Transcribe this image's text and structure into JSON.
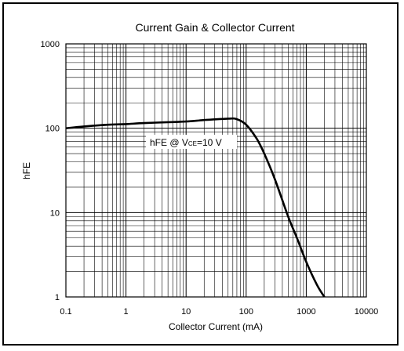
{
  "chart_data": {
    "type": "line",
    "title": "Current Gain & Collector Current",
    "xlabel": "Collector Current (mA)",
    "ylabel": "hFE",
    "x_scale": "log",
    "y_scale": "log",
    "xlim": [
      0.1,
      10000
    ],
    "ylim": [
      1,
      1000
    ],
    "grid": true,
    "x_ticks": [
      "0.1",
      "1",
      "10",
      "100",
      "1000",
      "10000"
    ],
    "y_ticks": [
      "1000",
      "100",
      "10",
      "1"
    ],
    "series": [
      {
        "x": [
          0.1,
          0.2,
          0.5,
          1,
          2,
          5,
          10,
          20,
          50,
          70,
          100,
          150,
          200,
          300,
          500,
          700,
          1000,
          1500,
          2000
        ],
        "y": [
          100,
          105,
          110,
          112,
          115,
          118,
          120,
          125,
          130,
          128,
          110,
          75,
          50,
          25,
          9,
          5,
          2.6,
          1.4,
          1
        ]
      }
    ],
    "annotation": {
      "prefix": "hFE @ V",
      "subscript": "CE",
      "suffix": "=10 V"
    }
  },
  "colors": {
    "line": "#000000",
    "grid": "#000000",
    "frame": "#000000",
    "background": "#ffffff"
  }
}
